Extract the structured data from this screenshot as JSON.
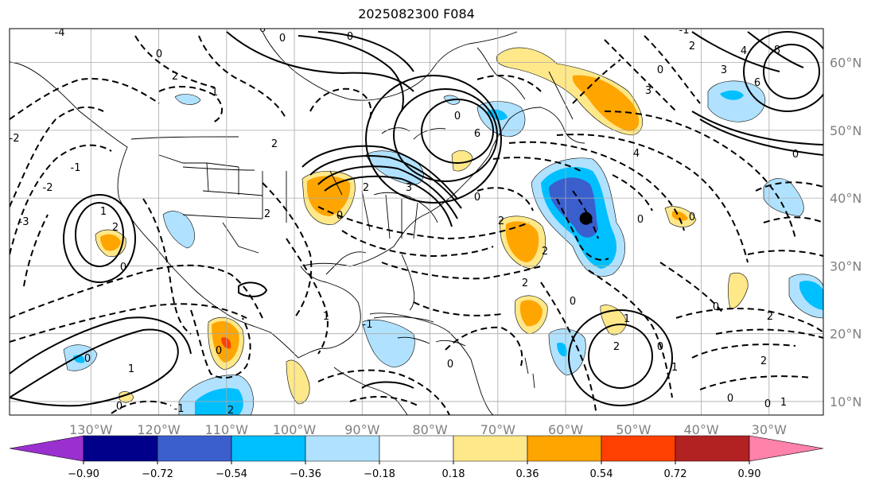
{
  "title": "2025082300 F084",
  "map": {
    "lat_labels": [
      "60°N",
      "50°N",
      "40°N",
      "30°N",
      "20°N",
      "10°N"
    ],
    "lat_values": [
      60,
      50,
      40,
      30,
      20,
      10
    ],
    "lon_labels": [
      "130°W",
      "120°W",
      "110°W",
      "100°W",
      "90°W",
      "80°W",
      "70°W",
      "60°W",
      "50°W",
      "40°W",
      "30°W"
    ],
    "lon_values": [
      -130,
      -120,
      -110,
      -100,
      -90,
      -80,
      -70,
      -60,
      -50,
      -40,
      -30
    ],
    "lon_range": [
      -142,
      -22
    ],
    "lat_range": [
      8,
      65
    ],
    "marker": {
      "lon": -57,
      "lat": 37,
      "color": "#000000"
    }
  },
  "colorbar": {
    "tick_labels": [
      "−0.90",
      "−0.72",
      "−0.54",
      "−0.36",
      "−0.18",
      "0.18",
      "0.36",
      "0.54",
      "0.72",
      "0.90"
    ],
    "colors": [
      "#9b30d0",
      "#00008b",
      "#3a5fcd",
      "#00bfff",
      "#b0e2ff",
      "#ffffff",
      "#ffe88a",
      "#ffa500",
      "#ff4000",
      "#b22222",
      "#ff82ab"
    ]
  },
  "contour_labels": [
    "0",
    "1",
    "2",
    "3",
    "4",
    "6",
    "8",
    "-1",
    "-2",
    "-3",
    "-4"
  ]
}
